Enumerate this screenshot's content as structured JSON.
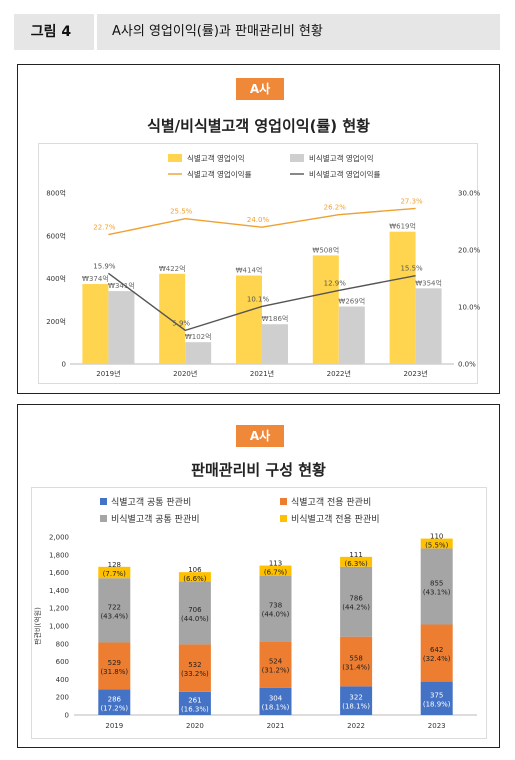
{
  "figure": {
    "number": "그림 4",
    "title": "A사의 영업이익(률)과 판매관리비 현황"
  },
  "top": {
    "badge": "A사",
    "title": "식별/비식별고객 영업이익(률) 현황",
    "chart_data": {
      "type": "bar",
      "categories": [
        "2019년",
        "2020년",
        "2021년",
        "2022년",
        "2023년"
      ],
      "series": [
        {
          "name": "식별고객 영업이익",
          "type": "bar",
          "axis": "left",
          "values": [
            374,
            422,
            414,
            508,
            619
          ],
          "labels": [
            "₩374억",
            "₩422억",
            "₩414억",
            "₩508억",
            "₩619억"
          ],
          "color": "#ffd54f"
        },
        {
          "name": "비식별고객 영업이익",
          "type": "bar",
          "axis": "left",
          "values": [
            341,
            102,
            186,
            269,
            354
          ],
          "labels": [
            "₩341억",
            "₩102억",
            "₩186억",
            "₩269억",
            "₩354억"
          ],
          "color": "#cfcfcf"
        },
        {
          "name": "식별고객 영업이익률",
          "type": "line",
          "axis": "right",
          "values": [
            22.7,
            25.5,
            24.0,
            26.2,
            27.3
          ],
          "labels": [
            "22.7%",
            "25.5%",
            "24.0%",
            "26.2%",
            "27.3%"
          ],
          "color": "#f0a030"
        },
        {
          "name": "비식별고객 영업이익률",
          "type": "line",
          "axis": "right",
          "values": [
            15.9,
            5.9,
            10.1,
            12.9,
            15.5
          ],
          "labels": [
            "15.9%",
            "5.9%",
            "10.1%",
            "12.9%",
            "15.5%"
          ],
          "color": "#555555"
        }
      ],
      "left_axis": {
        "min": 0,
        "max": 800,
        "ticks": [
          "0",
          "200억",
          "400억",
          "600억",
          "800억"
        ]
      },
      "right_axis": {
        "min": 0,
        "max": 30,
        "ticks": [
          "0.0%",
          "10.0%",
          "20.0%",
          "30.0%"
        ]
      },
      "legend_position": "top"
    }
  },
  "bottom": {
    "badge": "A사",
    "title": "판매관리비 구성 현황",
    "chart_data": {
      "type": "bar",
      "stacked": true,
      "categories": [
        "2019",
        "2020",
        "2021",
        "2022",
        "2023"
      ],
      "ylabel": "판관비(억원)",
      "ylim": [
        0,
        2000
      ],
      "yticks": [
        "0",
        "200",
        "400",
        "600",
        "800",
        "1,000",
        "1,200",
        "1,400",
        "1,600",
        "1,800",
        "2,000"
      ],
      "legend_position": "top",
      "series": [
        {
          "name": "식별고객 공통 판관비",
          "values": [
            286,
            261,
            304,
            322,
            375
          ],
          "pct": [
            "(17.2%)",
            "(16.3%)",
            "(18.1%)",
            "(18.1%)",
            "(18.9%)"
          ],
          "color": "#4472c4",
          "text_color": "#ffffff"
        },
        {
          "name": "식별고객 전용 판관비",
          "values": [
            529,
            532,
            524,
            558,
            642
          ],
          "pct": [
            "(31.8%)",
            "(33.2%)",
            "(31.2%)",
            "(31.4%)",
            "(32.4%)"
          ],
          "color": "#ed7d31",
          "text_color": "#222222"
        },
        {
          "name": "비식별고객 공통 판관비",
          "values": [
            722,
            706,
            738,
            786,
            855
          ],
          "pct": [
            "(43.4%)",
            "(44.0%)",
            "(44.0%)",
            "(44.2%)",
            "(43.1%)"
          ],
          "color": "#a5a5a5",
          "text_color": "#222222"
        },
        {
          "name": "비식별고객 전용 판관비",
          "values": [
            128,
            106,
            113,
            111,
            110
          ],
          "pct": [
            "(7.7%)",
            "(6.6%)",
            "(6.7%)",
            "(6.3%)",
            "(5.5%)"
          ],
          "color": "#ffc000",
          "text_color": "#222222"
        }
      ]
    }
  }
}
